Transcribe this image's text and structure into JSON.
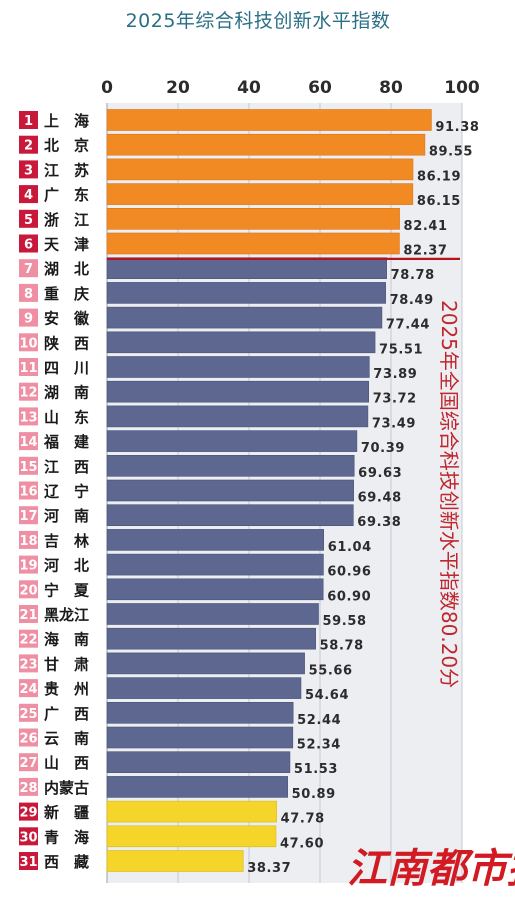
{
  "colors": {
    "top": "#f28a24",
    "mid": "#5d6790",
    "low": "#f5d52a",
    "rank_top": "#c8193a",
    "rank_low": "#ee8fa3",
    "national_line": "#b5141c",
    "note": "#c0262d"
  },
  "chart_data": {
    "type": "bar",
    "orientation": "horizontal",
    "title": "2025年综合科技创新水平指数",
    "xlim": [
      0,
      100
    ],
    "x_ticks": [
      0,
      20,
      40,
      60,
      80,
      100
    ],
    "grid": true,
    "national_average": 80.2,
    "annotation": "2025年全国综合科技创新水平指数80.20分",
    "rows": [
      {
        "rank": "1",
        "province": "上　海",
        "value": 91.38,
        "group": "top"
      },
      {
        "rank": "2",
        "province": "北　京",
        "value": 89.55,
        "group": "top"
      },
      {
        "rank": "3",
        "province": "江　苏",
        "value": 86.19,
        "group": "top"
      },
      {
        "rank": "4",
        "province": "广　东",
        "value": 86.15,
        "group": "top"
      },
      {
        "rank": "5",
        "province": "浙　江",
        "value": 82.41,
        "group": "top"
      },
      {
        "rank": "6",
        "province": "天　津",
        "value": 82.37,
        "group": "top"
      },
      {
        "rank": "7",
        "province": "湖　北",
        "value": 78.78,
        "group": "mid"
      },
      {
        "rank": "8",
        "province": "重　庆",
        "value": 78.49,
        "group": "mid"
      },
      {
        "rank": "9",
        "province": "安　徽",
        "value": 77.44,
        "group": "mid"
      },
      {
        "rank": "10",
        "province": "陕　西",
        "value": 75.51,
        "group": "mid"
      },
      {
        "rank": "11",
        "province": "四　川",
        "value": 73.89,
        "group": "mid"
      },
      {
        "rank": "12",
        "province": "湖　南",
        "value": 73.72,
        "group": "mid"
      },
      {
        "rank": "13",
        "province": "山　东",
        "value": 73.49,
        "group": "mid"
      },
      {
        "rank": "14",
        "province": "福　建",
        "value": 70.39,
        "group": "mid"
      },
      {
        "rank": "15",
        "province": "江　西",
        "value": 69.63,
        "group": "mid"
      },
      {
        "rank": "16",
        "province": "辽　宁",
        "value": 69.48,
        "group": "mid"
      },
      {
        "rank": "17",
        "province": "河　南",
        "value": 69.38,
        "group": "mid"
      },
      {
        "rank": "18",
        "province": "吉　林",
        "value": 61.04,
        "group": "mid"
      },
      {
        "rank": "19",
        "province": "河　北",
        "value": 60.96,
        "group": "mid"
      },
      {
        "rank": "20",
        "province": "宁　夏",
        "value": 60.9,
        "group": "mid"
      },
      {
        "rank": "21",
        "province": "黑龙江",
        "value": 59.58,
        "group": "mid"
      },
      {
        "rank": "22",
        "province": "海　南",
        "value": 58.78,
        "group": "mid"
      },
      {
        "rank": "23",
        "province": "甘　肃",
        "value": 55.66,
        "group": "mid"
      },
      {
        "rank": "24",
        "province": "贵　州",
        "value": 54.64,
        "group": "mid"
      },
      {
        "rank": "25",
        "province": "广　西",
        "value": 52.44,
        "group": "mid"
      },
      {
        "rank": "26",
        "province": "云　南",
        "value": 52.34,
        "group": "mid"
      },
      {
        "rank": "27",
        "province": "山　西",
        "value": 51.53,
        "group": "mid"
      },
      {
        "rank": "28",
        "province": "内蒙古",
        "value": 50.89,
        "group": "mid"
      },
      {
        "rank": "29",
        "province": "新　疆",
        "value": 47.78,
        "group": "low"
      },
      {
        "rank": "30",
        "province": "青　海",
        "value": 47.6,
        "group": "low"
      },
      {
        "rank": "31",
        "province": "西　藏",
        "value": 38.37,
        "group": "low"
      }
    ]
  },
  "watermark": "江南都市报"
}
